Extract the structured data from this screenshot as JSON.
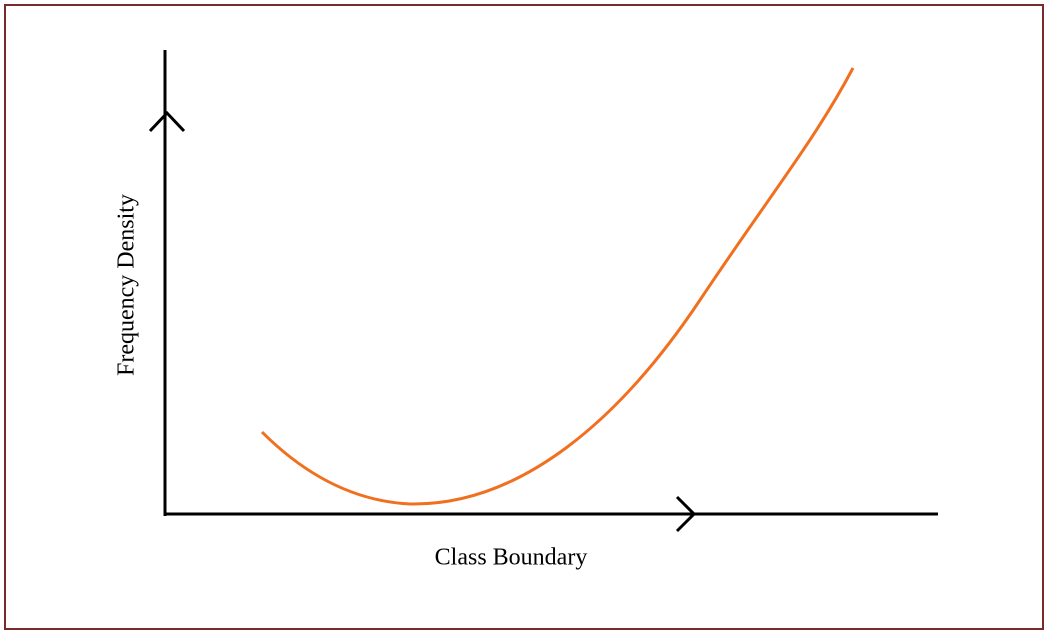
{
  "axes": {
    "y_label": "Frequency Density",
    "x_label": "Class Boundary"
  }
}
